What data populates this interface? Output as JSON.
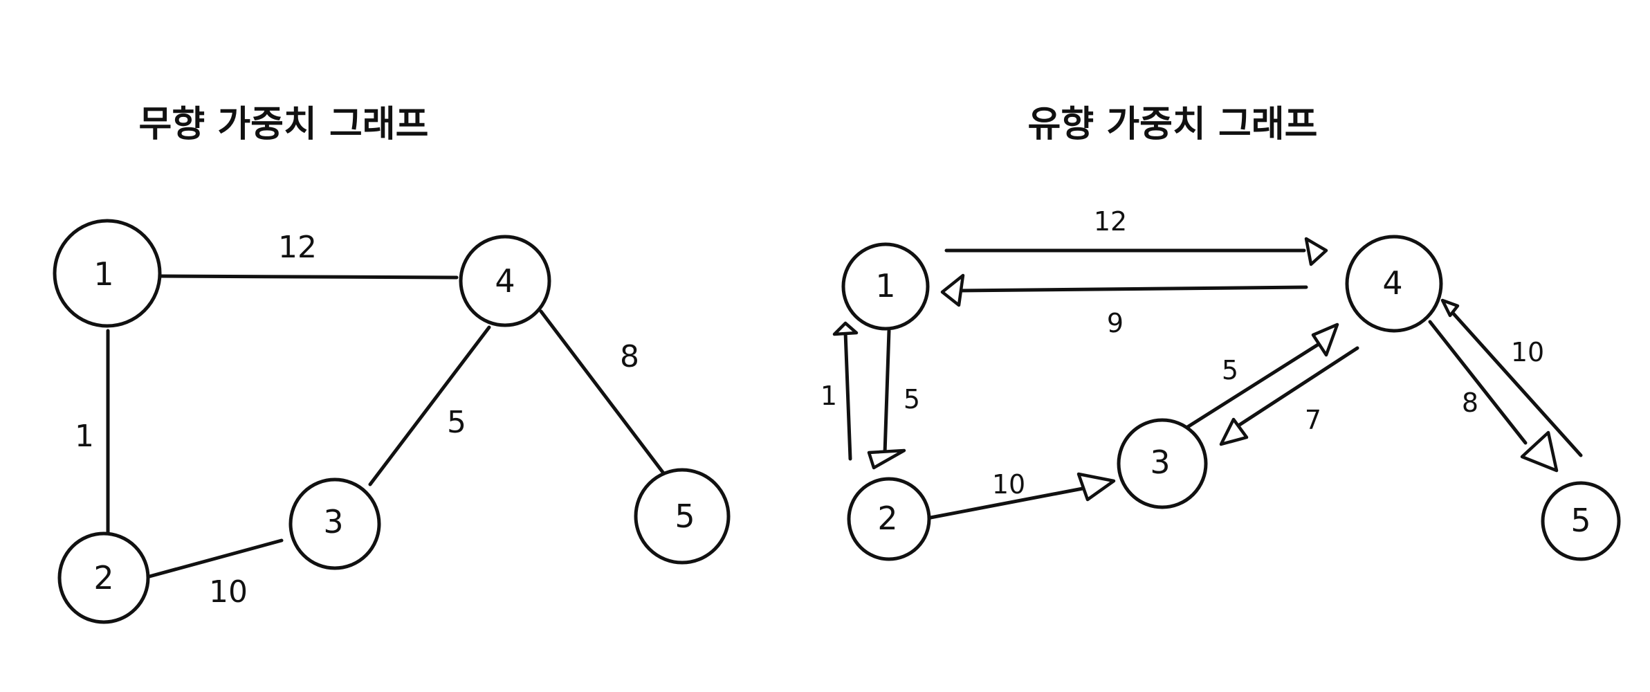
{
  "undirected": {
    "title": "무향 가중치 그래프",
    "nodes": [
      "1",
      "2",
      "3",
      "4",
      "5"
    ],
    "edges": [
      {
        "from": "1",
        "to": "4",
        "weight": "12"
      },
      {
        "from": "1",
        "to": "2",
        "weight": "1"
      },
      {
        "from": "2",
        "to": "3",
        "weight": "10"
      },
      {
        "from": "3",
        "to": "4",
        "weight": "5"
      },
      {
        "from": "4",
        "to": "5",
        "weight": "8"
      }
    ]
  },
  "directed": {
    "title": "유향 가중치 그래프",
    "nodes": [
      "1",
      "2",
      "3",
      "4",
      "5"
    ],
    "edges": [
      {
        "from": "1",
        "to": "4",
        "weight": "12"
      },
      {
        "from": "4",
        "to": "1",
        "weight": "9"
      },
      {
        "from": "2",
        "to": "1",
        "weight": "1"
      },
      {
        "from": "1",
        "to": "2",
        "weight": "5"
      },
      {
        "from": "2",
        "to": "3",
        "weight": "10"
      },
      {
        "from": "3",
        "to": "4",
        "weight": "5"
      },
      {
        "from": "4",
        "to": "3",
        "weight": "7"
      },
      {
        "from": "4",
        "to": "5",
        "weight": "8"
      },
      {
        "from": "5",
        "to": "4",
        "weight": "10"
      }
    ]
  }
}
